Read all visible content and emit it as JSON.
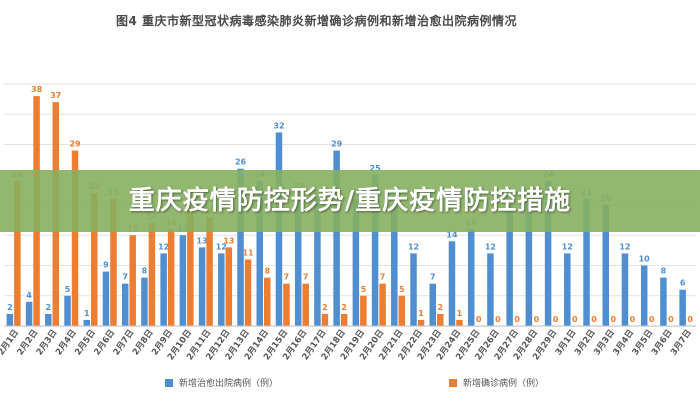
{
  "colors": {
    "discharged": "#4f8fd1",
    "confirmed": "#ed7d31",
    "banner": "#86b060",
    "grid": "#e3e3e3",
    "label": "#555555"
  },
  "banner_text": "重庆疫情防控形势/重庆疫情防控措施",
  "chart_data": {
    "type": "bar",
    "title": "图4    重庆市新型冠状病毒感染肺炎新增确诊病例和新增治愈出院病例情况",
    "xlabel": "",
    "ylabel": "",
    "ylim": [
      0,
      40
    ],
    "grid": true,
    "legend_position": "bottom",
    "categories": [
      "2月1日",
      "2月2日",
      "2月3日",
      "2月4日",
      "2月5日",
      "2月6日",
      "2月7日",
      "2月8日",
      "2月9日",
      "2月10日",
      "2月11日",
      "2月12日",
      "2月13日",
      "2月14日",
      "2月15日",
      "2月16日",
      "2月17日",
      "2月18日",
      "2月19日",
      "2月20日",
      "2月21日",
      "2月22日",
      "2月23日",
      "2月24日",
      "2月25日",
      "2月26日",
      "2月27日",
      "2月28日",
      "2月29日",
      "3月1日",
      "3月2日",
      "3月3日",
      "3月4日",
      "3月5日",
      "3月6日",
      "3月7日"
    ],
    "series": [
      {
        "name": "新增治愈出院病例（例）",
        "values": [
          2,
          4,
          2,
          5,
          1,
          9,
          7,
          8,
          12,
          15,
          13,
          12,
          26,
          24,
          32,
          22,
          21,
          29,
          21,
          25,
          20,
          12,
          7,
          14,
          16,
          12,
          20,
          21,
          24,
          12,
          21,
          20,
          12,
          10,
          8,
          6
        ]
      },
      {
        "name": "新增确诊病例（例）",
        "values": [
          24,
          38,
          37,
          29,
          22,
          21,
          15,
          17,
          16,
          20,
          18,
          13,
          11,
          8,
          7,
          7,
          2,
          2,
          5,
          7,
          5,
          1,
          2,
          1,
          0,
          0,
          0,
          0,
          0,
          0,
          0,
          0,
          0,
          0,
          0,
          0
        ]
      }
    ],
    "legend": [
      "新增治愈出院病例（例）",
      "新增确诊病例（例）"
    ]
  }
}
